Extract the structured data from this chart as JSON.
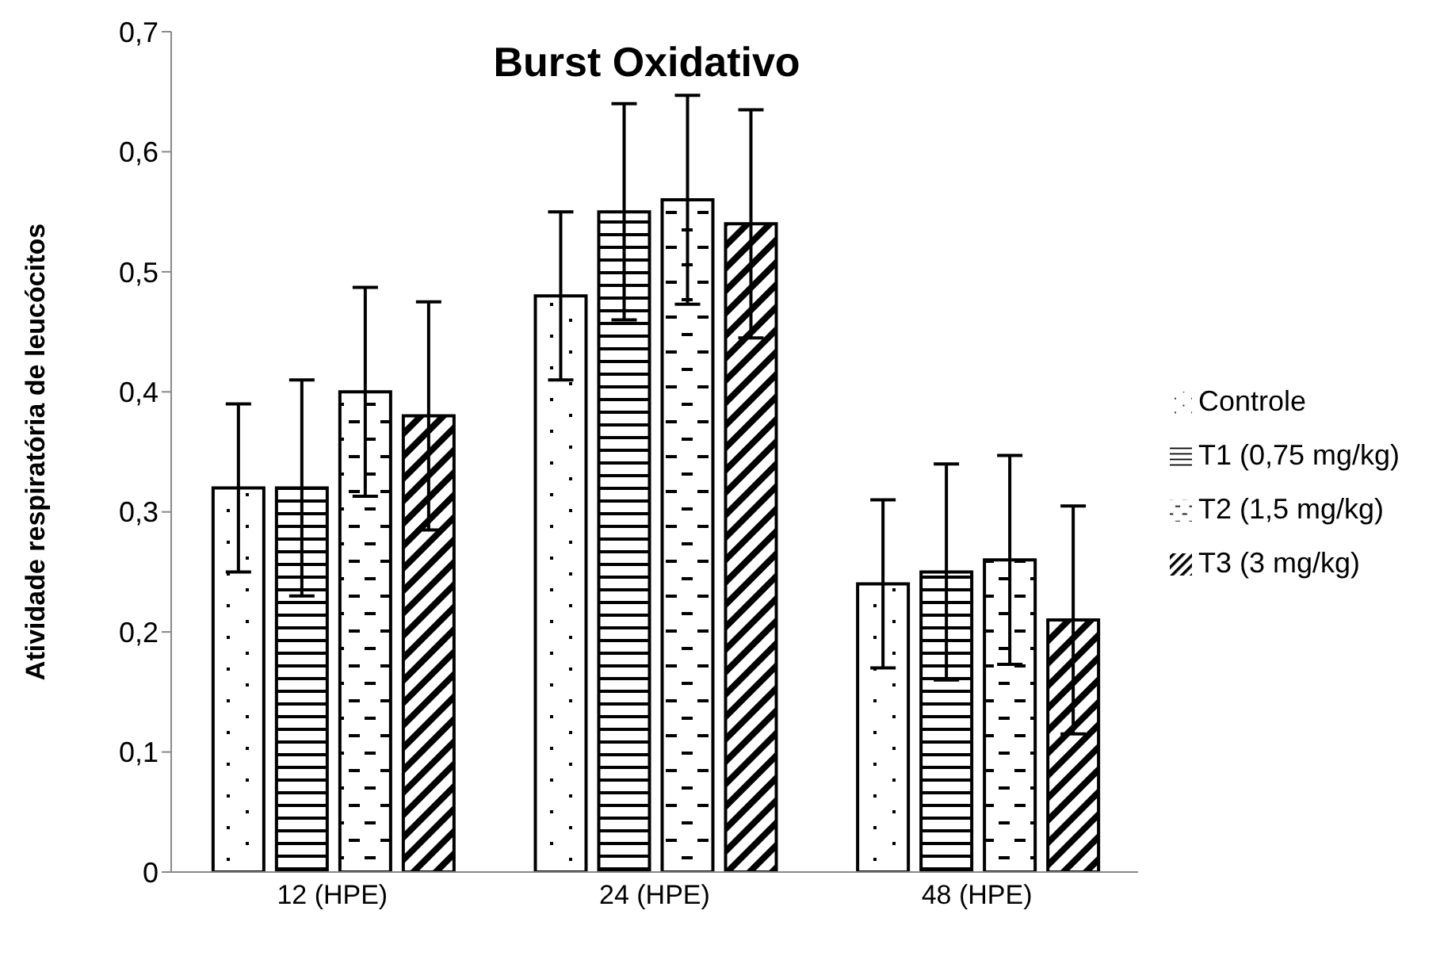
{
  "chart_data": {
    "type": "bar",
    "title": "Burst Oxidativo",
    "ylabel": "Atividade respiratória de leucócitos",
    "categories": [
      "12 (HPE)",
      "24 (HPE)",
      "48 (HPE)"
    ],
    "series": [
      {
        "name": "Controle",
        "color": "#000000",
        "values": [
          0.32,
          0.48,
          0.24
        ],
        "errors": [
          0.07,
          0.07,
          0.07
        ]
      },
      {
        "name": "T1 (0,75 mg/kg)",
        "color": "#000000",
        "values": [
          0.32,
          0.55,
          0.25
        ],
        "errors": [
          0.09,
          0.09,
          0.09
        ]
      },
      {
        "name": "T2 (1,5 mg/kg)",
        "color": "#000000",
        "values": [
          0.4,
          0.56,
          0.26
        ],
        "errors": [
          0.087,
          0.087,
          0.087
        ]
      },
      {
        "name": "T3 (3 mg/kg)",
        "color": "#000000",
        "values": [
          0.38,
          0.54,
          0.21
        ],
        "errors": [
          0.095,
          0.095,
          0.095
        ]
      }
    ],
    "ylim": [
      0,
      0.7
    ],
    "yticks": [
      {
        "value": 0,
        "label": "0"
      },
      {
        "value": 0.1,
        "label": "0,1"
      },
      {
        "value": 0.2,
        "label": "0,2"
      },
      {
        "value": 0.3,
        "label": "0,3"
      },
      {
        "value": 0.4,
        "label": "0,4"
      },
      {
        "value": 0.5,
        "label": "0,5"
      },
      {
        "value": 0.6,
        "label": "0,6"
      },
      {
        "value": 0.7,
        "label": "0,7"
      }
    ],
    "grid": false,
    "legend": "right"
  }
}
